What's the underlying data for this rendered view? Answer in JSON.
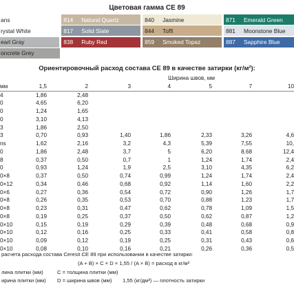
{
  "title": "Цветовая гамма CE 89",
  "colors": [
    [
      {
        "code": "",
        "name": "ans",
        "bg": "#ffffff",
        "fg": "#222222"
      },
      {
        "code": "814",
        "name": "Natural Quartz",
        "bg": "#c7b8a3",
        "fg": "#ffffff"
      },
      {
        "code": "840",
        "name": "Jasmine",
        "bg": "#efe9d6",
        "fg": "#222222"
      },
      {
        "code": "871",
        "name": "Emerald Green",
        "bg": "#1c7c6a",
        "fg": "#ffffff"
      }
    ],
    [
      {
        "code": "",
        "name": "rystal White",
        "bg": "#ffffff",
        "fg": "#222222"
      },
      {
        "code": "817",
        "name": "Solid Slate",
        "bg": "#8e96a1",
        "fg": "#ffffff"
      },
      {
        "code": "844",
        "name": "Toffi",
        "bg": "#c9ad8b",
        "fg": "#222222"
      },
      {
        "code": "881",
        "name": "Moonstone Blue",
        "bg": "#dde3e8",
        "fg": "#222222"
      }
    ],
    [
      {
        "code": "",
        "name": "earl Gray",
        "bg": "#b5b6b7",
        "fg": "#222222"
      },
      {
        "code": "838",
        "name": "Ruby Red",
        "bg": "#a33437",
        "fg": "#ffffff"
      },
      {
        "code": "859",
        "name": "Smoked Topaz",
        "bg": "#937f6a",
        "fg": "#ffffff"
      },
      {
        "code": "887",
        "name": "Sapphire Blue",
        "bg": "#3e6aa6",
        "fg": "#ffffff"
      }
    ],
    [
      {
        "code": "",
        "name": "oncrete Grey",
        "bg": "#a3a3a2",
        "fg": "#222222"
      }
    ]
  ],
  "table_title": "Ориентировочный расход состава CE 89 в качестве затирки (кг/м²):",
  "width_caption": "Ширина швов, мм",
  "size_header": "мм",
  "column_headers": [
    "1,5",
    "2",
    "3",
    "4",
    "5",
    "7",
    "10"
  ],
  "rows": [
    [
      "4",
      [
        "1,86",
        "2,48",
        "",
        "",
        "",
        "",
        ""
      ]
    ],
    [
      "0",
      [
        "4,65",
        "6,20",
        "",
        "",
        "",
        "",
        ""
      ]
    ],
    [
      "0",
      [
        "1,24",
        "1,65",
        "",
        "",
        "",
        "",
        ""
      ]
    ],
    [
      "0",
      [
        "3,10",
        "4,13",
        "",
        "",
        "",
        "",
        ""
      ]
    ],
    [
      "3",
      [
        "1,86",
        "2,50",
        "",
        "",
        "",
        "",
        ""
      ]
    ],
    [
      "3",
      [
        "0,70",
        "0,93",
        "1,40",
        "1,86",
        "2,33",
        "3,26",
        "4,6"
      ]
    ],
    [
      "ns",
      [
        "1,62",
        "2,16",
        "3,2",
        "4,3",
        "5,39",
        "7,55",
        "10,"
      ]
    ],
    [
      "0",
      [
        "1,86",
        "2,48",
        "3,7",
        "5",
        "6,20",
        "8,68",
        "12,4"
      ]
    ],
    [
      "8",
      [
        "0,37",
        "0,50",
        "0,7",
        "1",
        "1,24",
        "1,74",
        "2,4"
      ]
    ],
    [
      "0",
      [
        "0,93",
        "1,24",
        "1,9",
        "2,5",
        "3,10",
        "4,35",
        "6,2"
      ]
    ],
    [
      "0×8",
      [
        "0,37",
        "0,50",
        "0,74",
        "0,99",
        "1,24",
        "1,74",
        "2,4"
      ]
    ],
    [
      "0×12",
      [
        "0,34",
        "0,46",
        "0,68",
        "0,92",
        "1,14",
        "1,60",
        "2,2"
      ]
    ],
    [
      "0×6",
      [
        "0,27",
        "0,36",
        "0,54",
        "0,72",
        "0,90",
        "1,26",
        "1,7"
      ]
    ],
    [
      "0×8",
      [
        "0,26",
        "0,35",
        "0,53",
        "0,70",
        "0,88",
        "1,23",
        "1,7"
      ]
    ],
    [
      "0×8",
      [
        "0,23",
        "0,31",
        "0,47",
        "0,62",
        "0,78",
        "1,09",
        "1,5"
      ]
    ],
    [
      "0×8",
      [
        "0,19",
        "0,25",
        "0,37",
        "0,50",
        "0,62",
        "0,87",
        "1,2"
      ]
    ],
    [
      "0×10",
      [
        "0,15",
        "0,19",
        "0,29",
        "0,39",
        "0,48",
        "0,68",
        "0,9"
      ]
    ],
    [
      "0×10",
      [
        "0,12",
        "0,16",
        "0,25",
        "0,33",
        "0,41",
        "0,58",
        "0,8"
      ]
    ],
    [
      "0×10",
      [
        "0,09",
        "0,12",
        "0,19",
        "0,25",
        "0,31",
        "0,43",
        "0,6"
      ]
    ],
    [
      "0×10",
      [
        "0,08",
        "0,10",
        "0,16",
        "0,21",
        "0,26",
        "0,36",
        "0,5"
      ]
    ]
  ],
  "formula": {
    "intro": "расчета расхода состава Ceresit CE 89 при использовании в качестве затирки:",
    "equation": "(A + B) × C × D × 1,55 / (A × B) = расход в кг/м²",
    "line1_a": "лина плитки (мм)",
    "line1_b": "C = толщина плитки (мм)",
    "line2_a": "ирина плитки (мм)",
    "line2_b": "D = ширина швов (мм)",
    "line2_c": "1,55 (кг/дм³) — плотность затирки"
  }
}
